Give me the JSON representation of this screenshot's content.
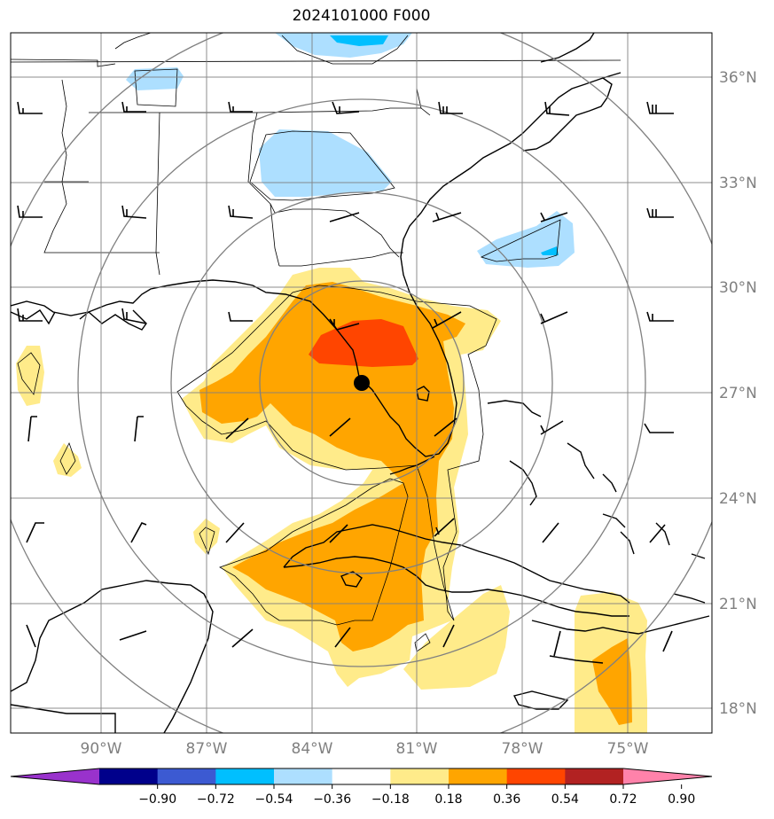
{
  "title": "2024101000 F000",
  "lat_labels": [
    "36°N",
    "33°N",
    "30°N",
    "27°N",
    "24°N",
    "21°N",
    "18°N"
  ],
  "lon_labels": [
    "90°W",
    "87°W",
    "84°W",
    "81°W",
    "78°W",
    "75°W"
  ],
  "colorbar": {
    "labels": [
      "−0.90",
      "−0.72",
      "−0.54",
      "−0.36",
      "−0.18",
      "0.18",
      "0.36",
      "0.54",
      "0.72",
      "0.90"
    ],
    "colors": [
      "#9932cc",
      "#00008b",
      "#3c5ad2",
      "#00bfff",
      "#addfff",
      "#ffffff",
      "#ffeb8a",
      "#ffa500",
      "#ff4500",
      "#b22222",
      "#ff82aa"
    ]
  },
  "storm_center": {
    "lat": 27.3,
    "lon": 82.4
  },
  "colors": {
    "light_blue": "#addfff",
    "blue": "#00bfff",
    "light_yellow": "#ffeb8a",
    "orange": "#ffa500",
    "red_orange": "#ff4500",
    "grid": "#808080"
  }
}
